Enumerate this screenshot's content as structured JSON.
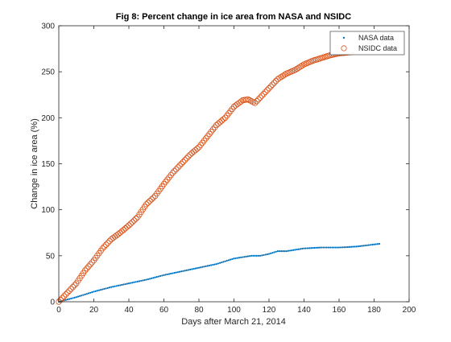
{
  "chart_data": {
    "type": "scatter",
    "title": "Fig 8: Percent change in ice area from NASA and NSIDC",
    "xlabel": "Days after March 21, 2014",
    "ylabel": "Change in ice area (%)",
    "xlim": [
      0,
      200
    ],
    "ylim": [
      0,
      300
    ],
    "xticks": [
      "0",
      "20",
      "40",
      "60",
      "80",
      "100",
      "120",
      "140",
      "160",
      "180",
      "200"
    ],
    "yticks": [
      "0",
      "50",
      "100",
      "150",
      "200",
      "250",
      "300"
    ],
    "grid": false,
    "legend_position": "top-right",
    "series": [
      {
        "name": "NASA data",
        "marker": "point",
        "color": "#0072BD",
        "x_start": 0,
        "x_end": 183,
        "x_step": 1,
        "x": [
          0,
          10,
          20,
          30,
          40,
          50,
          60,
          70,
          80,
          90,
          100,
          110,
          115,
          120,
          125,
          130,
          140,
          150,
          160,
          170,
          183
        ],
        "y": [
          0,
          5,
          11,
          16,
          20,
          24,
          29,
          33,
          37,
          41,
          47,
          50,
          50,
          52,
          55,
          55,
          58,
          59,
          59,
          60,
          63
        ]
      },
      {
        "name": "NSIDC data",
        "marker": "circle",
        "color": "#D95319",
        "x_start": 0,
        "x_end": 170,
        "x_step": 1,
        "x": [
          0,
          5,
          10,
          15,
          20,
          25,
          30,
          35,
          40,
          45,
          50,
          55,
          60,
          65,
          70,
          75,
          80,
          85,
          90,
          95,
          100,
          105,
          108,
          112,
          115,
          120,
          125,
          130,
          135,
          140,
          145,
          150,
          155,
          160,
          165,
          170
        ],
        "y": [
          0,
          10,
          20,
          34,
          45,
          58,
          68,
          75,
          83,
          92,
          106,
          115,
          128,
          140,
          150,
          160,
          168,
          180,
          192,
          200,
          212,
          219,
          220,
          216,
          222,
          232,
          242,
          248,
          252,
          258,
          262,
          265,
          268,
          270,
          271,
          272
        ]
      }
    ]
  }
}
